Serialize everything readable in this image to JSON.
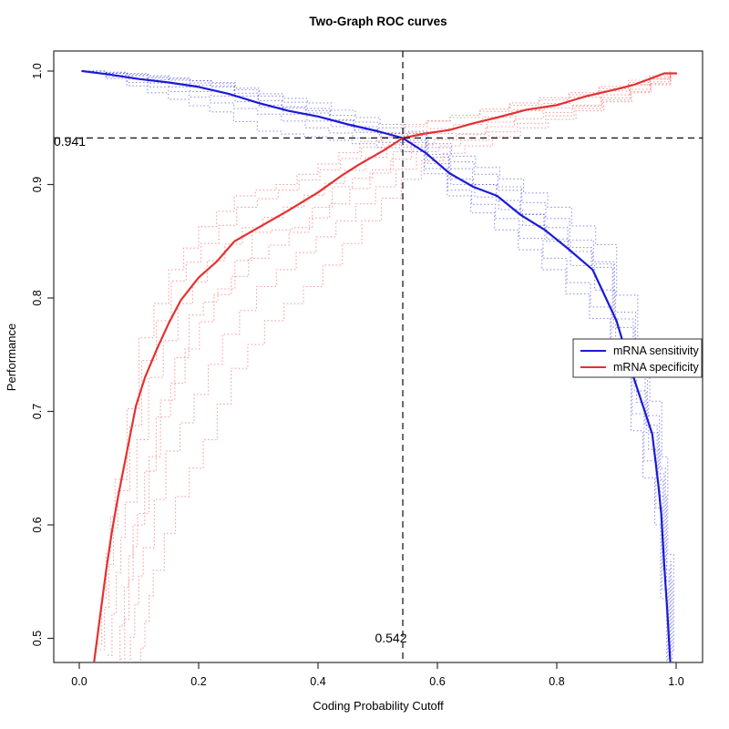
{
  "title": "Two-Graph ROC curves",
  "axes": {
    "xlabel": "Coding Probability Cutoff",
    "ylabel": "Performance",
    "x_ticks": [
      "0.0",
      "0.2",
      "0.4",
      "0.6",
      "0.8",
      "1.0"
    ],
    "x_tick_values": [
      0,
      0.2,
      0.4,
      0.6,
      0.8,
      1.0
    ],
    "y_ticks": [
      "0.5",
      "0.6",
      "0.7",
      "0.8",
      "0.9",
      "1.0"
    ],
    "y_tick_values": [
      0.5,
      0.6,
      0.7,
      0.8,
      0.9,
      1.0
    ]
  },
  "thresholds": {
    "cutoff": 0.542,
    "cutoff_label": "0.542",
    "performance": 0.941,
    "performance_label": "0.941"
  },
  "legend": {
    "items": [
      {
        "label": "mRNA sensitivity",
        "color": "#1a1ad6"
      },
      {
        "label": "mRNA specificity",
        "color": "#e53030"
      }
    ]
  },
  "colors": {
    "sensitivity": "#1a1ad6",
    "specificity": "#e53030",
    "sensitivity_replicate": "rgba(55,55,225,0.55)",
    "specificity_replicate": "rgba(240,60,60,0.5)",
    "guide": "#1c1c1c",
    "axis": "#2e2e2e",
    "background": "#ffffff"
  },
  "chart_data": {
    "type": "line",
    "title": "Two-Graph ROC curves",
    "xlabel": "Coding Probability Cutoff",
    "ylabel": "Performance",
    "xlim": [
      0,
      1
    ],
    "ylim": [
      0.48,
      1.018
    ],
    "grid": false,
    "legend_position": "right-middle",
    "threshold": {
      "cutoff": 0.542,
      "performance": 0.941
    },
    "series": [
      {
        "name": "mRNA sensitivity",
        "style": "solid",
        "points": [
          [
            0.005,
            1.0
          ],
          [
            0.05,
            0.997
          ],
          [
            0.1,
            0.993
          ],
          [
            0.15,
            0.99
          ],
          [
            0.2,
            0.986
          ],
          [
            0.25,
            0.98
          ],
          [
            0.3,
            0.972
          ],
          [
            0.35,
            0.965
          ],
          [
            0.4,
            0.96
          ],
          [
            0.45,
            0.953
          ],
          [
            0.5,
            0.947
          ],
          [
            0.542,
            0.941
          ],
          [
            0.58,
            0.928
          ],
          [
            0.62,
            0.91
          ],
          [
            0.66,
            0.898
          ],
          [
            0.7,
            0.89
          ],
          [
            0.74,
            0.873
          ],
          [
            0.78,
            0.86
          ],
          [
            0.82,
            0.843
          ],
          [
            0.86,
            0.825
          ],
          [
            0.9,
            0.78
          ],
          [
            0.93,
            0.728
          ],
          [
            0.96,
            0.68
          ],
          [
            0.97,
            0.636
          ],
          [
            0.975,
            0.61
          ],
          [
            0.98,
            0.565
          ],
          [
            0.985,
            0.525
          ],
          [
            0.99,
            0.48
          ]
        ]
      },
      {
        "name": "mRNA specificity",
        "style": "solid",
        "points": [
          [
            0.025,
            0.48
          ],
          [
            0.035,
            0.52
          ],
          [
            0.045,
            0.56
          ],
          [
            0.055,
            0.595
          ],
          [
            0.065,
            0.625
          ],
          [
            0.08,
            0.665
          ],
          [
            0.095,
            0.705
          ],
          [
            0.11,
            0.73
          ],
          [
            0.13,
            0.755
          ],
          [
            0.15,
            0.778
          ],
          [
            0.17,
            0.798
          ],
          [
            0.2,
            0.818
          ],
          [
            0.23,
            0.832
          ],
          [
            0.26,
            0.85
          ],
          [
            0.3,
            0.862
          ],
          [
            0.35,
            0.877
          ],
          [
            0.4,
            0.893
          ],
          [
            0.44,
            0.908
          ],
          [
            0.47,
            0.918
          ],
          [
            0.51,
            0.93
          ],
          [
            0.542,
            0.941
          ],
          [
            0.58,
            0.945
          ],
          [
            0.62,
            0.948
          ],
          [
            0.66,
            0.954
          ],
          [
            0.7,
            0.959
          ],
          [
            0.75,
            0.966
          ],
          [
            0.8,
            0.97
          ],
          [
            0.85,
            0.978
          ],
          [
            0.9,
            0.984
          ],
          [
            0.93,
            0.988
          ],
          [
            0.96,
            0.994
          ],
          [
            0.98,
            0.998
          ],
          [
            1.0,
            0.998
          ]
        ]
      }
    ],
    "replicate_series": [
      {
        "parent": "mRNA sensitivity",
        "style": "dotted",
        "x": [
          0.01,
          0.08,
          0.15,
          0.22,
          0.3,
          0.38,
          0.46,
          0.542,
          0.62,
          0.7,
          0.78,
          0.86,
          0.93,
          0.97,
          0.99
        ],
        "dx": [
          0.002,
          -0.002,
          0.004,
          -0.004,
          0.006,
          -0.006,
          0.0
        ],
        "sets": [
          [
            1.0,
            0.998,
            0.994,
            0.989,
            0.978,
            0.967,
            0.955,
            0.945,
            0.92,
            0.898,
            0.87,
            0.832,
            0.743,
            0.65,
            0.485
          ],
          [
            1.0,
            0.996,
            0.992,
            0.987,
            0.974,
            0.963,
            0.951,
            0.939,
            0.914,
            0.886,
            0.862,
            0.827,
            0.736,
            0.64,
            0.482
          ],
          [
            1.0,
            0.993,
            0.986,
            0.978,
            0.968,
            0.956,
            0.946,
            0.937,
            0.9,
            0.878,
            0.85,
            0.807,
            0.708,
            0.625,
            0.475
          ],
          [
            1.0,
            0.99,
            0.982,
            0.972,
            0.962,
            0.95,
            0.941,
            0.933,
            0.895,
            0.87,
            0.835,
            0.792,
            0.698,
            0.615,
            0.472
          ],
          [
            1.0,
            0.997,
            0.993,
            0.99,
            0.98,
            0.972,
            0.959,
            0.947,
            0.925,
            0.905,
            0.88,
            0.847,
            0.758,
            0.66,
            0.488
          ],
          [
            1.0,
            0.987,
            0.975,
            0.964,
            0.947,
            0.942,
            0.936,
            0.929,
            0.89,
            0.86,
            0.825,
            0.782,
            0.683,
            0.6,
            0.47
          ],
          [
            1.0,
            0.996,
            0.989,
            0.986,
            0.97,
            0.965,
            0.948,
            0.943,
            0.905,
            0.895,
            0.852,
            0.83,
            0.718,
            0.645,
            0.483
          ]
        ]
      },
      {
        "parent": "mRNA specificity",
        "style": "dotted",
        "x": [
          0.03,
          0.045,
          0.06,
          0.1,
          0.15,
          0.2,
          0.26,
          0.33,
          0.4,
          0.47,
          0.542,
          0.62,
          0.72,
          0.82,
          0.92,
          0.99
        ],
        "dx": [
          0.005,
          0.018,
          0.032,
          0.05,
          0.068,
          0.0,
          0.04
        ],
        "sets": [
          [
            0.49,
            0.565,
            0.63,
            0.745,
            0.815,
            0.848,
            0.88,
            0.895,
            0.913,
            0.933,
            0.951,
            0.961,
            0.972,
            0.981,
            0.992,
            1.0
          ],
          [
            0.485,
            0.558,
            0.62,
            0.73,
            0.795,
            0.833,
            0.862,
            0.88,
            0.901,
            0.924,
            0.946,
            0.953,
            0.966,
            0.977,
            0.988,
            0.998
          ],
          [
            0.478,
            0.545,
            0.6,
            0.695,
            0.755,
            0.803,
            0.835,
            0.858,
            0.883,
            0.91,
            0.935,
            0.944,
            0.958,
            0.969,
            0.984,
            0.997
          ],
          [
            0.472,
            0.53,
            0.58,
            0.665,
            0.715,
            0.768,
            0.81,
            0.84,
            0.868,
            0.898,
            0.929,
            0.939,
            0.954,
            0.967,
            0.982,
            0.996
          ],
          [
            0.468,
            0.515,
            0.56,
            0.625,
            0.675,
            0.738,
            0.78,
            0.81,
            0.848,
            0.888,
            0.921,
            0.934,
            0.95,
            0.965,
            0.981,
            0.995
          ],
          [
            0.495,
            0.575,
            0.64,
            0.765,
            0.825,
            0.863,
            0.89,
            0.9,
            0.918,
            0.938,
            0.953,
            0.959,
            0.97,
            0.979,
            0.99,
            0.999
          ],
          [
            0.482,
            0.552,
            0.61,
            0.71,
            0.785,
            0.808,
            0.858,
            0.862,
            0.898,
            0.913,
            0.945,
            0.945,
            0.965,
            0.97,
            0.988,
            0.998
          ]
        ]
      }
    ]
  }
}
